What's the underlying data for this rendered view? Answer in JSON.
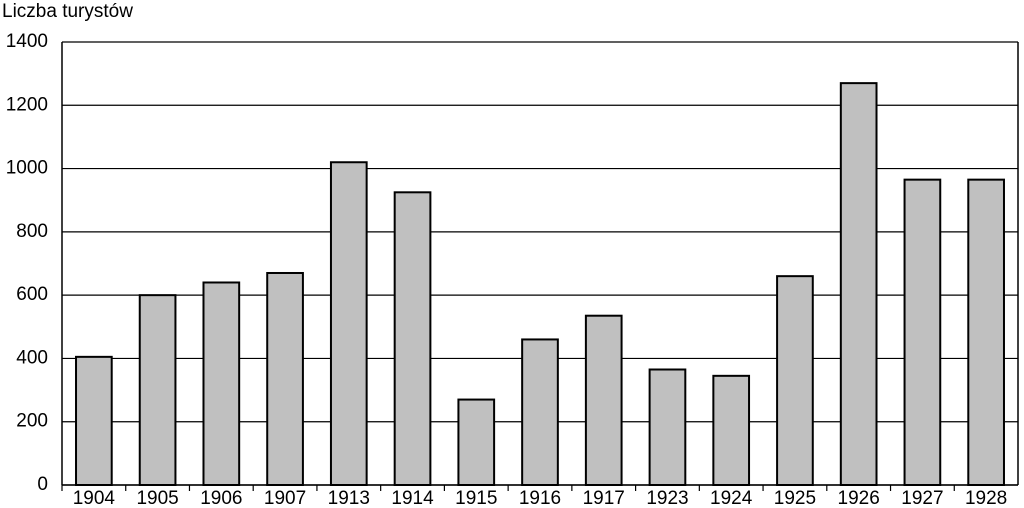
{
  "chart_data": {
    "type": "bar",
    "y_label": "Liczba turystów",
    "categories": [
      "1904",
      "1905",
      "1906",
      "1907",
      "1913",
      "1914",
      "1915",
      "1916",
      "1917",
      "1923",
      "1924",
      "1925",
      "1926",
      "1927",
      "1928"
    ],
    "values": [
      405,
      600,
      640,
      670,
      1020,
      925,
      270,
      460,
      535,
      365,
      345,
      660,
      1270,
      965,
      965
    ],
    "color": "#c0c0c0",
    "ylim": [
      0,
      1400
    ],
    "yticks": [
      0,
      200,
      400,
      600,
      800,
      1000,
      1200,
      1400
    ],
    "grid": true
  }
}
